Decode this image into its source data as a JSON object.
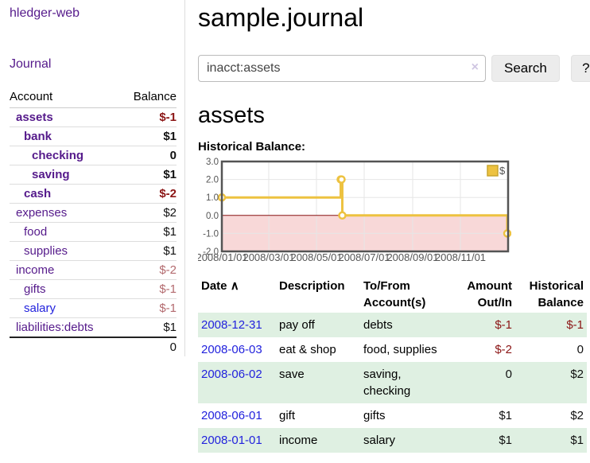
{
  "app": {
    "title": "hledger-web"
  },
  "colors": {
    "link_purple": "#551a8b",
    "link_blue": "#2222dd",
    "negative": "#8b1515",
    "negative_soft": "#b36a6e",
    "row_shade_green": "#dff0e2",
    "series_yellow": "#edc240"
  },
  "sidebar": {
    "journal_link": "Journal",
    "accounts_table": {
      "headers": {
        "account": "Account",
        "balance": "Balance"
      },
      "rows": [
        {
          "name": "assets",
          "balance": "$-1",
          "depth": 1,
          "emphasis": true,
          "name_color": "purple",
          "balance_tone": "negative"
        },
        {
          "name": "bank",
          "balance": "$1",
          "depth": 2,
          "emphasis": true,
          "name_color": "purple",
          "balance_tone": "normal"
        },
        {
          "name": "checking",
          "balance": "0",
          "depth": 3,
          "emphasis": true,
          "name_color": "purple",
          "balance_tone": "normal"
        },
        {
          "name": "saving",
          "balance": "$1",
          "depth": 3,
          "emphasis": true,
          "name_color": "purple",
          "balance_tone": "normal"
        },
        {
          "name": "cash",
          "balance": "$-2",
          "depth": 2,
          "emphasis": true,
          "name_color": "purple",
          "balance_tone": "negative"
        },
        {
          "name": "expenses",
          "balance": "$2",
          "depth": 1,
          "emphasis": false,
          "name_color": "purple",
          "balance_tone": "normal"
        },
        {
          "name": "food",
          "balance": "$1",
          "depth": 2,
          "emphasis": false,
          "name_color": "purple",
          "balance_tone": "normal"
        },
        {
          "name": "supplies",
          "balance": "$1",
          "depth": 2,
          "emphasis": false,
          "name_color": "purple",
          "balance_tone": "normal"
        },
        {
          "name": "income",
          "balance": "$-2",
          "depth": 1,
          "emphasis": false,
          "name_color": "purple",
          "balance_tone": "negative-soft"
        },
        {
          "name": "gifts",
          "balance": "$-1",
          "depth": 2,
          "emphasis": false,
          "name_color": "purple",
          "balance_tone": "negative-soft"
        },
        {
          "name": "salary",
          "balance": "$-1",
          "depth": 2,
          "emphasis": false,
          "name_color": "blue",
          "balance_tone": "negative-soft"
        },
        {
          "name": "liabilities:debts",
          "balance": "$1",
          "depth": 1,
          "emphasis": false,
          "name_color": "purple",
          "balance_tone": "normal"
        }
      ],
      "total": "0"
    }
  },
  "main": {
    "title": "sample.journal",
    "search": {
      "value": "inacct:assets",
      "clear_icon": "×",
      "search_button": "Search",
      "help_button": "?"
    },
    "account_heading": "assets",
    "chart_label": "Historical Balance:"
  },
  "chart_data": {
    "type": "line",
    "title": "Historical Balance:",
    "style": "steps",
    "xlim": [
      "2008-01-01",
      "2009-01-01"
    ],
    "ylim": [
      -2,
      3
    ],
    "yticks": [
      3.0,
      2.0,
      1.0,
      0.0,
      -1.0,
      -2.0
    ],
    "xticks": [
      "2008/01/01",
      "2008/03/01",
      "2008/05/01",
      "2008/07/01",
      "2008/09/01",
      "2008/11/01"
    ],
    "grid": true,
    "legend": {
      "position": "top-right",
      "label": "$"
    },
    "series": [
      {
        "name": "$",
        "color": "#edc240",
        "points": [
          {
            "date": "2008-01-01",
            "value": 1
          },
          {
            "date": "2008-06-01",
            "value": 2
          },
          {
            "date": "2008-06-02",
            "value": 2
          },
          {
            "date": "2008-06-03",
            "value": 0
          },
          {
            "date": "2008-12-31",
            "value": -1
          }
        ]
      }
    ],
    "negative_region_color": "#f8d8d8",
    "zero_line_color": "#871111",
    "border_color": "#545454",
    "grid_color": "#e6e6e6"
  },
  "register_table": {
    "headers": {
      "date": "Date",
      "sort_indicator": "∧",
      "description": "Description",
      "accounts": "To/From Account(s)",
      "amount": "Amount Out/In",
      "balance": "Historical Balance"
    },
    "rows": [
      {
        "date": "2008-12-31",
        "description": "pay off",
        "accounts": "debts",
        "amount": "$-1",
        "balance": "$-1",
        "amount_tone": "negative",
        "balance_tone": "negative",
        "shaded": true
      },
      {
        "date": "2008-06-03",
        "description": "eat & shop",
        "accounts": "food, supplies",
        "amount": "$-2",
        "balance": "0",
        "amount_tone": "negative",
        "balance_tone": "normal",
        "shaded": false
      },
      {
        "date": "2008-06-02",
        "description": "save",
        "accounts": "saving, checking",
        "amount": "0",
        "balance": "$2",
        "amount_tone": "normal",
        "balance_tone": "normal",
        "shaded": true
      },
      {
        "date": "2008-06-01",
        "description": "gift",
        "accounts": "gifts",
        "amount": "$1",
        "balance": "$2",
        "amount_tone": "normal",
        "balance_tone": "normal",
        "shaded": false
      },
      {
        "date": "2008-01-01",
        "description": "income",
        "accounts": "salary",
        "amount": "$1",
        "balance": "$1",
        "amount_tone": "normal",
        "balance_tone": "normal",
        "shaded": true
      }
    ]
  }
}
